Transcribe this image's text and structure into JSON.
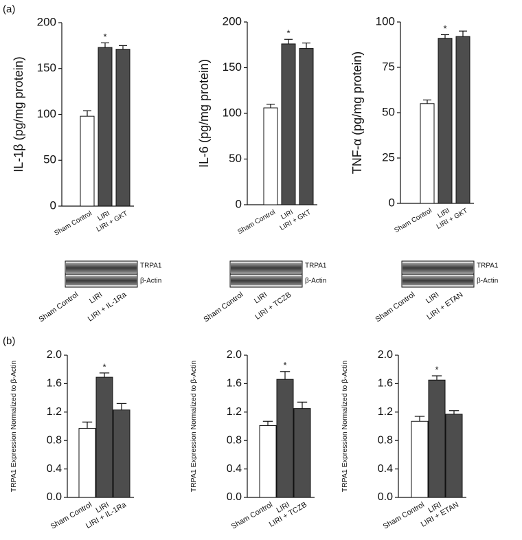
{
  "panel_labels": [
    "(a)",
    "(b)"
  ],
  "blots": [
    {
      "bands": [
        "TRPA1",
        "β-Actin"
      ],
      "categories": [
        "Sham Control",
        "LIRI",
        "LIRI + IL-1Ra"
      ]
    },
    {
      "bands": [
        "TRPA1",
        "β-Actin"
      ],
      "categories": [
        "Sham Control",
        "LIRI",
        "LIRI + TCZB"
      ]
    },
    {
      "bands": [
        "TRPA1",
        "β-Actin"
      ],
      "categories": [
        "Sham Control",
        "LIRI",
        "LIRI + ETAN"
      ]
    }
  ],
  "chart_data": [
    {
      "type": "bar",
      "ylabel": "IL-1β (pg/mg protein)",
      "categories": [
        "Sham Control",
        "LIRI",
        "LIRI + GKT"
      ],
      "values": [
        98,
        173,
        171
      ],
      "errors": [
        6,
        5,
        4
      ],
      "significance": [
        null,
        "*",
        null
      ],
      "colors": [
        "#ffffff",
        "#4d4d4d",
        "#4d4d4d"
      ],
      "ylim": [
        0,
        200
      ],
      "yticks": [
        0,
        50,
        100,
        150,
        200
      ]
    },
    {
      "type": "bar",
      "ylabel": "IL-6 (pg/mg protein)",
      "categories": [
        "Sham Control",
        "LIRI",
        "LIRI + GKT"
      ],
      "values": [
        106,
        176,
        171
      ],
      "errors": [
        4,
        5,
        6
      ],
      "significance": [
        null,
        "*",
        null
      ],
      "colors": [
        "#ffffff",
        "#4d4d4d",
        "#4d4d4d"
      ],
      "ylim": [
        0,
        200
      ],
      "yticks": [
        0,
        50,
        100,
        150,
        200
      ]
    },
    {
      "type": "bar",
      "ylabel": "TNF-α (pg/mg protein)",
      "categories": [
        "Sham Control",
        "LIRI",
        "LIRI + GKT"
      ],
      "values": [
        55,
        91,
        92
      ],
      "errors": [
        2,
        2,
        3
      ],
      "significance": [
        null,
        "*",
        null
      ],
      "colors": [
        "#ffffff",
        "#4d4d4d",
        "#4d4d4d"
      ],
      "ylim": [
        0,
        100
      ],
      "yticks": [
        0,
        25,
        50,
        75,
        100
      ]
    },
    {
      "type": "bar",
      "ylabel": "TRPA1 Expression Normalized to β-Actin",
      "categories": [
        "Sham Control",
        "LIRI",
        "LIRI + IL-1Ra"
      ],
      "values": [
        0.97,
        1.69,
        1.23
      ],
      "errors": [
        0.09,
        0.06,
        0.09
      ],
      "significance": [
        null,
        "*",
        null
      ],
      "colors": [
        "#ffffff",
        "#4d4d4d",
        "#4d4d4d"
      ],
      "ylim": [
        0,
        2
      ],
      "yticks": [
        {
          "value": 0,
          "label": "0.0"
        },
        0.4,
        0.8,
        1.2,
        1.6,
        {
          "value": 2,
          "label": "2.0"
        }
      ]
    },
    {
      "type": "bar",
      "ylabel": "TRPA1 Expression Normalized to β-Actin",
      "categories": [
        "Sham Control",
        "LIRI",
        "LIRI + TCZB"
      ],
      "values": [
        1.01,
        1.66,
        1.25
      ],
      "errors": [
        0.06,
        0.11,
        0.09
      ],
      "significance": [
        null,
        "*",
        null
      ],
      "colors": [
        "#ffffff",
        "#4d4d4d",
        "#4d4d4d"
      ],
      "ylim": [
        0,
        2
      ],
      "yticks": [
        {
          "value": 0,
          "label": "0.0"
        },
        0.4,
        0.8,
        1.2,
        1.6,
        {
          "value": 2,
          "label": "2.0"
        }
      ]
    },
    {
      "type": "bar",
      "ylabel": "TRPA1 Expression Normalized to β-Actin",
      "categories": [
        "Sham Control",
        "LIRI",
        "LIRI + ETAN"
      ],
      "values": [
        1.07,
        1.65,
        1.17
      ],
      "errors": [
        0.07,
        0.06,
        0.05
      ],
      "significance": [
        null,
        "*",
        null
      ],
      "colors": [
        "#ffffff",
        "#4d4d4d",
        "#4d4d4d"
      ],
      "ylim": [
        0,
        2
      ],
      "yticks": [
        {
          "value": 0,
          "label": "0.0"
        },
        0.4,
        0.8,
        1.2,
        1.6,
        {
          "value": 2,
          "label": "2.0"
        }
      ]
    }
  ]
}
